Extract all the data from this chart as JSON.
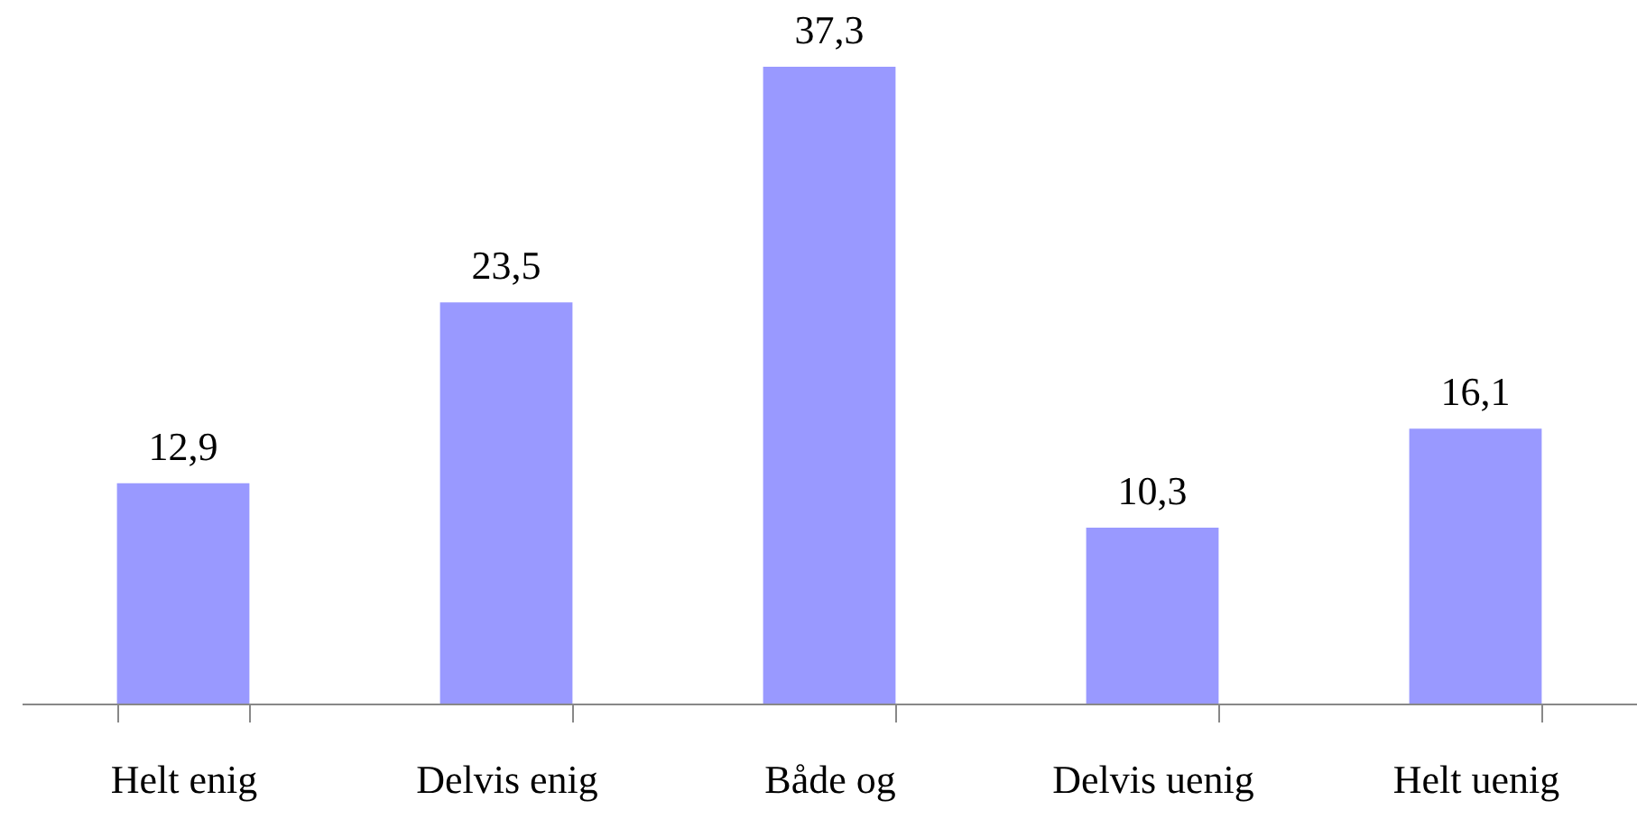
{
  "chart_data": {
    "type": "bar",
    "categories": [
      "Helt enig",
      "Delvis enig",
      "Både og",
      "Delvis uenig",
      "Helt uenig"
    ],
    "values": [
      12.9,
      23.5,
      37.3,
      10.3,
      16.1
    ],
    "value_labels": [
      "12,9",
      "23,5",
      "37,3",
      "10,3",
      "16,1"
    ],
    "color": "#9999ff"
  }
}
